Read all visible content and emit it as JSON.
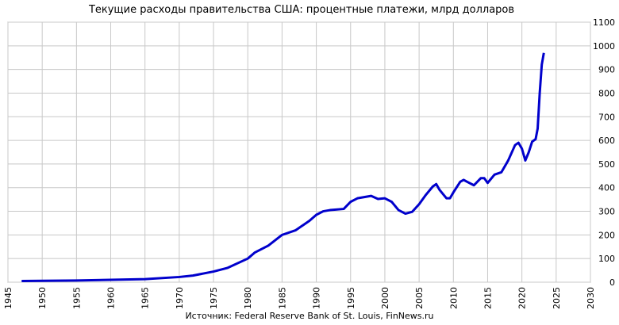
{
  "chart_data": {
    "type": "line",
    "title": "Текущие расходы правительства США: процентные платежи, млрд долларов",
    "source": "Источник: Federal Reserve Bank of St. Louis, FinNews.ru",
    "x": [
      1947,
      1950,
      1955,
      1960,
      1965,
      1970,
      1972,
      1975,
      1977,
      1980,
      1981,
      1983,
      1985,
      1987,
      1989,
      1990,
      1991,
      1992,
      1994,
      1995,
      1996,
      1997,
      1998,
      1999,
      2000,
      2001,
      2002,
      2003,
      2004,
      2005,
      2006,
      2007,
      2007.5,
      2008,
      2009,
      2009.5,
      2010,
      2011,
      2011.5,
      2012,
      2013,
      2014,
      2014.5,
      2015,
      2016,
      2017,
      2018,
      2019,
      2019.5,
      2020,
      2020.5,
      2021,
      2021.5,
      2022,
      2022.3,
      2022.6,
      2022.9,
      2023.2
    ],
    "series": [
      {
        "name": "Процентные платежи",
        "color": "#0000cc",
        "values": [
          5,
          6,
          7,
          10,
          13,
          22,
          28,
          45,
          60,
          100,
          125,
          155,
          200,
          220,
          260,
          285,
          300,
          305,
          310,
          340,
          355,
          360,
          365,
          352,
          355,
          340,
          305,
          290,
          298,
          330,
          370,
          405,
          415,
          390,
          355,
          355,
          380,
          425,
          433,
          425,
          410,
          440,
          440,
          420,
          455,
          465,
          515,
          580,
          590,
          565,
          515,
          550,
          595,
          605,
          650,
          800,
          920,
          970
        ]
      }
    ],
    "xlim": [
      1945,
      2030
    ],
    "xticks": [
      1945,
      1950,
      1955,
      1960,
      1965,
      1970,
      1975,
      1980,
      1985,
      1990,
      1995,
      2000,
      2005,
      2010,
      2015,
      2020,
      2025,
      2030
    ],
    "ylim": [
      0,
      1100
    ],
    "yticks": [
      0,
      100,
      200,
      300,
      400,
      500,
      600,
      700,
      800,
      900,
      1000,
      1100
    ],
    "grid": true,
    "y_axis_side": "right"
  }
}
